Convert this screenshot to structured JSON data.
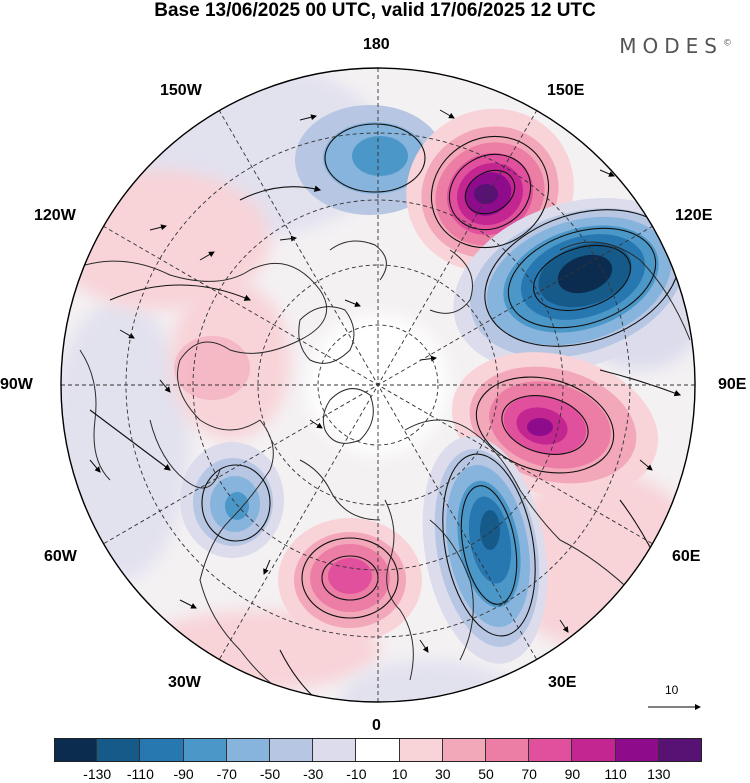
{
  "header": {
    "title": "Base 13/06/2025 00 UTC, valid 17/06/2025 12 UTC",
    "brand": "MODES",
    "brand_mark": "©"
  },
  "map": {
    "projection": "north-polar-stereographic",
    "longitude_labels": {
      "top": "180",
      "bottom": "0",
      "left": "90W",
      "right": "90E",
      "upper_left_1": "150W",
      "upper_left_2": "120W",
      "upper_right_1": "150E",
      "upper_right_2": "120E",
      "lower_left_1": "60W",
      "lower_left_2": "30W",
      "lower_right_1": "60E",
      "lower_right_2": "30E"
    },
    "reference_vector": "10",
    "colors": {
      "land_outline": "#2a2a2a",
      "grid": "#333333"
    }
  },
  "colorbar": {
    "colors": [
      "#0b2c4f",
      "#165a8a",
      "#2777b0",
      "#4b97c8",
      "#86b4dc",
      "#b7c6e2",
      "#dcdcec",
      "#ffffff",
      "#f8d3d8",
      "#f3a8b9",
      "#ec7ea6",
      "#e0509d",
      "#c32690",
      "#8e0c8c",
      "#571274"
    ],
    "ticks": [
      "-130",
      "-110",
      "-90",
      "-70",
      "-50",
      "-30",
      "-10",
      "10",
      "30",
      "50",
      "70",
      "90",
      "110",
      "130"
    ]
  }
}
